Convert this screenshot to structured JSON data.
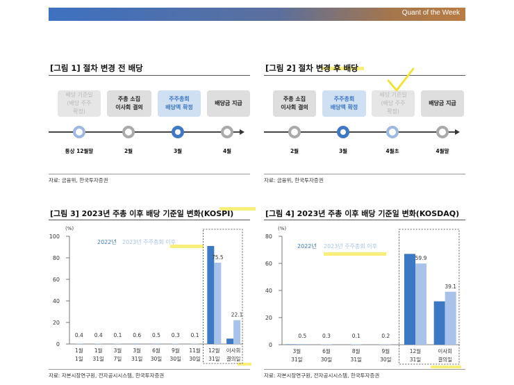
{
  "header": {
    "title": "Quant of the Week",
    "gradient": [
      "#3d71c0",
      "#b97c43"
    ]
  },
  "fig1": {
    "title": "[그림 1] 절차 변경 전 배당",
    "boxes": [
      "배당 기준일\n(배당 주주\n확정)",
      "주총 소집\n이사회 결의",
      "주주총회\n배당액 확정",
      "배당금 지급"
    ],
    "timeline": [
      "통상 12월말",
      "2월",
      "3월",
      "4월"
    ],
    "source": "자료: 금융위, 한국투자증권"
  },
  "fig2": {
    "title": "[그림 2] 절차 변경 후 배당",
    "boxes": [
      "주총 소집\n이사회 결의",
      "주주총회\n배당액 확정",
      "배당 기준일\n(배당 주주\n확정)",
      "배당금 지급"
    ],
    "timeline": [
      "2월",
      "3월",
      "4월초",
      "4월말"
    ],
    "source": "자료: 금융위, 한국투자증권"
  },
  "colors": {
    "series2022": "#3d78c4",
    "series2023": "#a8c2ea",
    "highlight": "#f5ea4d"
  },
  "fig3": {
    "title": "[그림 3] 2023년 주총 이후 배당 기준일 변화(KOSPI)",
    "source": "자료: 자본시장연구원, 전자공시시스템, 한국투자증권",
    "chart_data": {
      "type": "bar",
      "unit": "(%)",
      "ylim": [
        0,
        100
      ],
      "yticks": [
        0,
        20,
        40,
        60,
        80,
        100
      ],
      "categories": [
        [
          "1월",
          "1일"
        ],
        [
          "1월",
          "31일"
        ],
        [
          "3월",
          "7일"
        ],
        [
          "3월",
          "31일"
        ],
        [
          "6월",
          "30일"
        ],
        [
          "9월",
          "30일"
        ],
        [
          "11월",
          "30일"
        ],
        [
          "12월",
          "31일"
        ],
        [
          "이사회",
          "결의일"
        ]
      ],
      "series": [
        {
          "name": "2022년",
          "values": [
            null,
            null,
            null,
            null,
            null,
            null,
            null,
            91,
            5
          ]
        },
        {
          "name": "2023년 주주총회 이후",
          "values": [
            0.4,
            0.4,
            0.1,
            0.6,
            0.5,
            0.3,
            0.1,
            75.5,
            22.1
          ]
        }
      ],
      "data_labels": [
        "0.4",
        "0.4",
        "0.1",
        "0.6",
        "0.5",
        "0.3",
        "0.1",
        "75.5",
        "22.1"
      ]
    }
  },
  "fig4": {
    "title": "[그림 4] 2023년 주총 이후 배당 기준일 변화(KOSDAQ)",
    "source": "자료: 자본시장연구원, 전자공시시스템, 한국투자증권",
    "chart_data": {
      "type": "bar",
      "unit": "(%)",
      "ylim": [
        0,
        80
      ],
      "yticks": [
        0,
        20,
        40,
        60,
        80
      ],
      "categories": [
        [
          "3월",
          "31일"
        ],
        [
          "6월",
          "30일"
        ],
        [
          "8월",
          "31일"
        ],
        [
          "9월",
          "30일"
        ],
        [
          "12월",
          "31일"
        ],
        [
          "이사회",
          "결의일"
        ]
      ],
      "series": [
        {
          "name": "2022년",
          "values": [
            0.3,
            null,
            null,
            null,
            67,
            32
          ]
        },
        {
          "name": "2023년 주주총회 이후",
          "values": [
            0.5,
            0.3,
            0.1,
            0.2,
            59.9,
            39.1
          ]
        }
      ],
      "data_labels": [
        "0.5",
        "0.3",
        "0.1",
        "0.2",
        "59.9",
        "39.1"
      ]
    }
  }
}
